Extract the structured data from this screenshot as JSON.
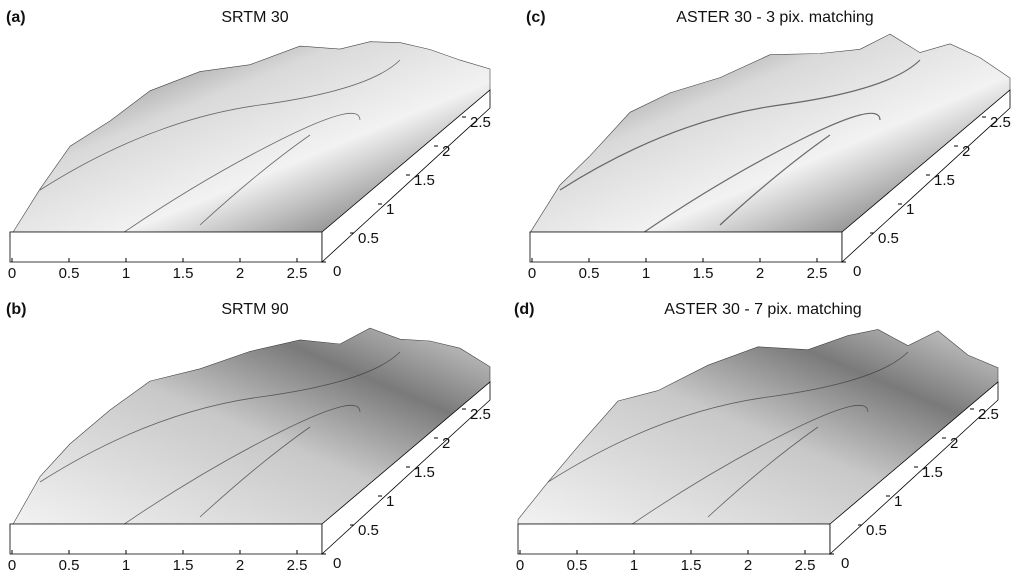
{
  "panels": [
    {
      "label": "(a)",
      "title": "SRTM 30",
      "x_ticks": [
        "0",
        "0.5",
        "1",
        "1.5",
        "2",
        "2.5"
      ],
      "y_ticks": [
        "0",
        "0.5",
        "1",
        "1.5",
        "2",
        "2.5"
      ]
    },
    {
      "label": "(b)",
      "title": "SRTM 90",
      "x_ticks": [
        "0",
        "0.5",
        "1",
        "1.5",
        "2",
        "2.5"
      ],
      "y_ticks": [
        "0",
        "0.5",
        "1",
        "1.5",
        "2",
        "2.5"
      ]
    },
    {
      "label": "(c)",
      "title": "ASTER 30 - 3 pix. matching",
      "x_ticks": [
        "0",
        "0.5",
        "1",
        "1.5",
        "2",
        "2.5"
      ],
      "y_ticks": [
        "0",
        "0.5",
        "1",
        "1.5",
        "2",
        "2.5"
      ]
    },
    {
      "label": "(d)",
      "title": "ASTER 30 - 7 pix. matching",
      "x_ticks": [
        "0",
        "0.5",
        "1",
        "1.5",
        "2",
        "2.5"
      ],
      "y_ticks": [
        "0",
        "0.5",
        "1",
        "1.5",
        "2",
        "2.5"
      ]
    }
  ]
}
